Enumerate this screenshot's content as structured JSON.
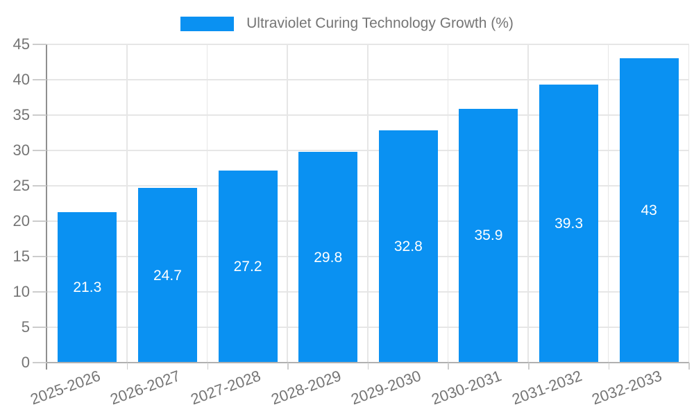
{
  "chart_data": {
    "type": "bar",
    "title": "",
    "legend": {
      "label": "Ultraviolet Curing Technology Growth (%)",
      "position": "top"
    },
    "categories": [
      "2025-2026",
      "2026-2027",
      "2027-2028",
      "2028-2029",
      "2029-2030",
      "2030-2031",
      "2031-2032",
      "2032-2033"
    ],
    "series": [
      {
        "name": "Ultraviolet Curing Technology Growth (%)",
        "values": [
          21.3,
          24.7,
          27.2,
          29.8,
          32.8,
          35.9,
          39.3,
          43
        ],
        "value_labels": [
          "21.3",
          "24.7",
          "27.2",
          "29.8",
          "32.8",
          "35.9",
          "39.3",
          "43"
        ]
      }
    ],
    "xlabel": "",
    "ylabel": "",
    "ylim": [
      0,
      45
    ],
    "yticks": [
      0,
      5,
      10,
      15,
      20,
      25,
      30,
      35,
      40,
      45
    ],
    "grid": true,
    "x_label_rotation_deg": -20,
    "colors": {
      "bar": "#0a91f2",
      "grid": "#e6e6e6",
      "axis": "#8f8f8f",
      "baseline": "#b0b0b0",
      "tick": "#cccccc",
      "label_text": "#757575",
      "value_text": "#ffffff",
      "background": "#ffffff"
    }
  }
}
